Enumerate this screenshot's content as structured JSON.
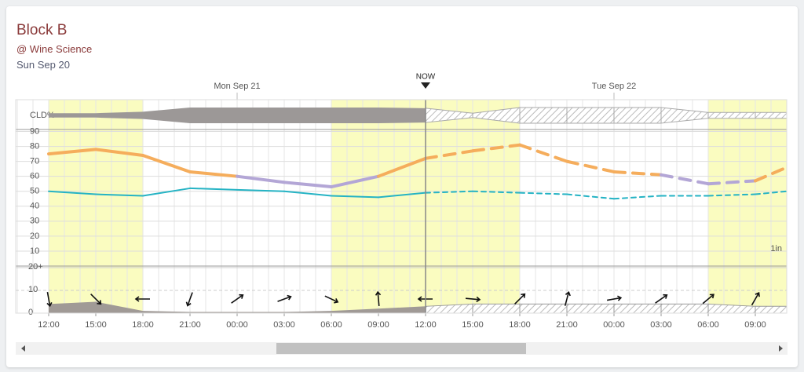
{
  "header": {
    "title": "Block B",
    "location": "@ Wine Science",
    "date": "Sun Sep 20"
  },
  "chart_data": {
    "type": "line",
    "now_label": "NOW",
    "now_x": 24,
    "day_labels": [
      {
        "x": 12,
        "label": "Mon Sep 21"
      },
      {
        "x": 36,
        "label": "Tue Sep 22"
      }
    ],
    "daylight": [
      [
        0,
        6
      ],
      [
        18,
        30
      ],
      [
        42,
        47
      ]
    ],
    "x": [
      0,
      3,
      6,
      9,
      12,
      15,
      18,
      21,
      24,
      27,
      30,
      33,
      36,
      39,
      42,
      45,
      47
    ],
    "xlim": [
      0,
      47
    ],
    "xticks": [
      {
        "value": 0,
        "label": "12:00"
      },
      {
        "value": 3,
        "label": "15:00"
      },
      {
        "value": 6,
        "label": "18:00"
      },
      {
        "value": 9,
        "label": "21:00"
      },
      {
        "value": 12,
        "label": "00:00"
      },
      {
        "value": 15,
        "label": "03:00"
      },
      {
        "value": 18,
        "label": "06:00"
      },
      {
        "value": 21,
        "label": "09:00"
      },
      {
        "value": 24,
        "label": "12:00"
      },
      {
        "value": 27,
        "label": "15:00"
      },
      {
        "value": 30,
        "label": "18:00"
      },
      {
        "value": 33,
        "label": "21:00"
      },
      {
        "value": 36,
        "label": "00:00"
      },
      {
        "value": 39,
        "label": "03:00"
      },
      {
        "value": 42,
        "label": "06:00"
      },
      {
        "value": 45,
        "label": "09:00"
      }
    ],
    "ylim": [
      0,
      95
    ],
    "yticks": [
      10,
      20,
      30,
      40,
      50,
      60,
      70,
      80,
      90
    ],
    "grid": true,
    "series": [
      {
        "color": "#f5ad5c",
        "color_below": {
          "value": 60,
          "color": "#b3a6d6"
        },
        "values": [
          75,
          78,
          74,
          63,
          60,
          56,
          53,
          60,
          72,
          77,
          81,
          70,
          63,
          61,
          55,
          57,
          66
        ]
      },
      {
        "color": "#25b3c4",
        "values": [
          50,
          48,
          47,
          52,
          51,
          50,
          47,
          46,
          49,
          50,
          49,
          48,
          45,
          47,
          47,
          48,
          50
        ]
      }
    ],
    "cloud": {
      "label": "CLD%",
      "ylim": [
        0,
        100
      ],
      "color": "#9c9897",
      "values": [
        20,
        20,
        40,
        100,
        100,
        100,
        100,
        100,
        90,
        20,
        100,
        100,
        100,
        100,
        30,
        30,
        30
      ]
    },
    "wind": {
      "ylim": [
        0,
        20
      ],
      "yticks": [
        {
          "value": 20,
          "label": "20+"
        },
        10,
        0
      ],
      "color": "#a09a96",
      "values": [
        4,
        5,
        1,
        0.5,
        0.5,
        0.5,
        1,
        2,
        3,
        4,
        4,
        4,
        4,
        4,
        4,
        3,
        3
      ],
      "directions": [
        170,
        135,
        270,
        200,
        55,
        70,
        115,
        355,
        270,
        95,
        45,
        15,
        80,
        55,
        50,
        30,
        30
      ]
    },
    "rain_label": "1in"
  }
}
